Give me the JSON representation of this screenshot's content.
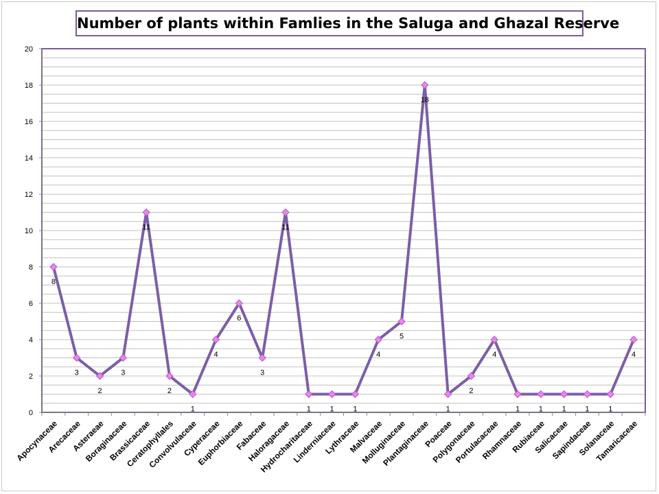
{
  "chart_data": {
    "type": "line",
    "title": "Number of plants within Famlies in the Saluga and Ghazal Reserve",
    "xlabel": "",
    "ylabel": "",
    "ylim": [
      0,
      20
    ],
    "y_ticks": [
      "0",
      "2",
      "4",
      "6",
      "8",
      "10",
      "12",
      "14",
      "16",
      "18",
      "20"
    ],
    "grid": true,
    "categories": [
      "Apocynaceae",
      "Arecaceae",
      "Asteraeae",
      "Boraginaceae",
      "Brassicaceae",
      "Ceratophyllales",
      "Convolvulaceae",
      "Cyperaceae",
      "Euphorbiaceae",
      "Fabaceae",
      "Haloragaceae",
      "Hydrocharitaceae",
      "Linderniaceae",
      "Lythraceae",
      "Malvaceae",
      "Molluginaceae",
      "Plantaginaceae",
      "Poaceae",
      "Polygonaceae",
      "Portulacaceae",
      "Rhamnaceae",
      "Rubiaceae",
      "Salicaceae",
      "Sapindaceae",
      "Solanaceae",
      "Tamaricaceae"
    ],
    "series": [
      {
        "values": [
          8,
          3,
          2,
          3,
          11,
          2,
          1,
          4,
          6,
          3,
          11,
          1,
          1,
          1,
          4,
          5,
          18,
          1,
          2,
          4,
          1,
          1,
          1,
          1,
          1,
          4
        ]
      }
    ],
    "data_labels": [
      "8",
      "3",
      "2",
      "3",
      "11",
      "2",
      "1",
      "4",
      "6",
      "3",
      "11",
      "1",
      "1",
      "1",
      "4",
      "5",
      "18",
      "1",
      "2",
      "4",
      "1",
      "1",
      "1",
      "1",
      "1",
      "4"
    ],
    "colors": {
      "line": "#7b5ea7",
      "marker_fill": "#ee82ee",
      "marker_stroke": "#b05fc0",
      "plot_border": "#7a5c94",
      "grid": "#c0c0c0",
      "axis": "#868686"
    }
  }
}
